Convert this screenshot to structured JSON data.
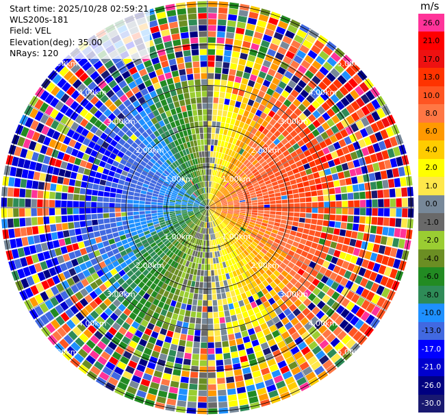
{
  "header": {
    "start_time": "Start time: 2025/10/28 02:59:21",
    "station": "WLS200s-181",
    "field": "Field: VEL",
    "elevation": "Elevation(deg): 35.00",
    "nrays": "NRays: 120"
  },
  "colorbar": {
    "unit": "m/s",
    "labels": [
      "26.0",
      "21.0",
      "17.0",
      "13.0",
      "10.0",
      "8.0",
      "6.0",
      "4.0",
      "2.0",
      "1.0",
      "0.0",
      "-1.0",
      "-2.0",
      "-4.0",
      "-6.0",
      "-8.0",
      "-10.0",
      "-13.0",
      "-17.0",
      "-21.0",
      "-26.0",
      "-30.0"
    ],
    "colors": [
      "#ff3399",
      "#ff0000",
      "#ee1111",
      "#ff3300",
      "#ff5522",
      "#ff7744",
      "#ff9900",
      "#ffcc00",
      "#ffff00",
      "#ffe84a",
      "#778899",
      "#696969",
      "#9acd32",
      "#6b8e23",
      "#228b22",
      "#2e8b57",
      "#1e90ff",
      "#4169e1",
      "#0000ff",
      "#0000cd",
      "#000080",
      "#191970"
    ],
    "dark_labels": [
      "-17.0",
      "-21.0",
      "-26.0",
      "-30.0"
    ]
  },
  "chart_data": {
    "type": "ppi",
    "field": "VEL",
    "units": "m/s",
    "elevation_deg": 35.0,
    "nrays": 120,
    "range_rings_km": [
      1.0,
      2.0,
      3.0,
      4.0,
      5.0
    ],
    "ring_labels": [
      "1.00km",
      "2.00km",
      "3.00km",
      "4.00km",
      "5.00km"
    ],
    "colorbar_range": [
      -30.0,
      26.0
    ],
    "velocity_pattern": {
      "negative_sector": "west",
      "positive_sector": "east",
      "near_zero_axis": "north-south",
      "outer_ranges": "noisy"
    }
  }
}
